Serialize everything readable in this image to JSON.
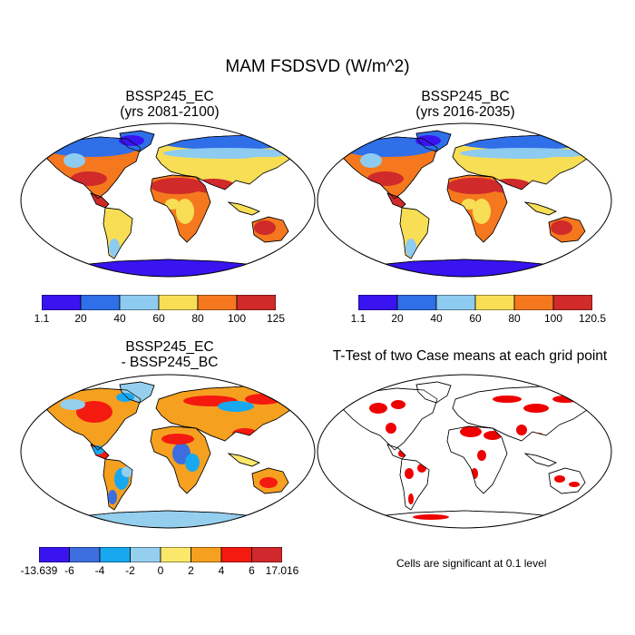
{
  "title": "MAM FSDSVD (W/m^2)",
  "panels": [
    {
      "line1": "BSSP245_EC",
      "line2": "(yrs 2081-2100)"
    },
    {
      "line1": "BSSP245_BC",
      "line2": "(yrs 2016-2035)"
    },
    {
      "line1": "BSSP245_EC",
      "line2": "- BSSP245_BC"
    },
    {
      "line1": "T-Test of two Case means at each grid point",
      "line2": ""
    }
  ],
  "colorbars": [
    {
      "colors": [
        "#3a14f0",
        "#2f6fe8",
        "#8ecbf0",
        "#f8de55",
        "#f5781e",
        "#d02a2a"
      ],
      "labels": [
        "1.1",
        "20",
        "40",
        "60",
        "80",
        "100",
        "125"
      ]
    },
    {
      "colors": [
        "#3a14f0",
        "#2f6fe8",
        "#8ecbf0",
        "#f8de55",
        "#f5781e",
        "#d02a2a"
      ],
      "labels": [
        "1.1",
        "20",
        "40",
        "60",
        "80",
        "100",
        "120.5"
      ]
    },
    {
      "colors": [
        "#3a14f0",
        "#3d6ee0",
        "#18a8f0",
        "#95cfee",
        "#fbe86a",
        "#f6a020",
        "#f41a10",
        "#d0282c"
      ],
      "labels": [
        "-13.639",
        "-6",
        "-4",
        "-2",
        "0",
        "2",
        "4",
        "6",
        "17.016"
      ]
    }
  ],
  "note": "Cells are significant at 0.1 level",
  "colors": {
    "ocean": "#ffffff",
    "coast": "#000000",
    "sig": "#ee0000"
  }
}
